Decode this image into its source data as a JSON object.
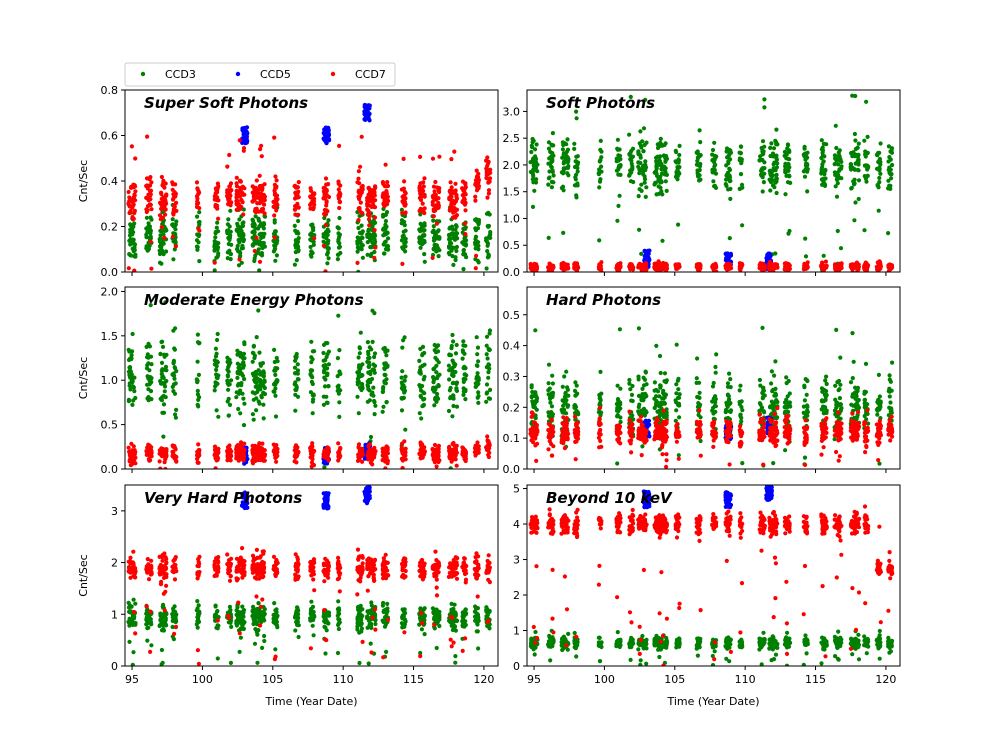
{
  "figure": {
    "xlabel": "Time (Year Date)",
    "ylabel": "Cnt/Sec"
  },
  "legend": {
    "location": "top-left",
    "entries": [
      {
        "name": "CCD3",
        "color": "#008000"
      },
      {
        "name": "CCD5",
        "color": "#0000ff"
      },
      {
        "name": "CCD7",
        "color": "#ff0000"
      }
    ]
  },
  "chart_data": [
    {
      "type": "scatter",
      "title": "Super Soft Photons",
      "xlim": [
        94.5,
        121
      ],
      "ylim": [
        0,
        0.8
      ],
      "xticks": [
        95,
        100,
        105,
        110,
        115,
        120
      ],
      "yticks": [
        0,
        0.2,
        0.4,
        0.6,
        0.8
      ],
      "ytick_labels": [
        "0.0",
        "0.2",
        "0.4",
        "0.6",
        "0.8"
      ],
      "series": [
        {
          "name": "CCD3",
          "color": "#008000",
          "level": 0.15,
          "spread": 0.05,
          "outlier_range": [
            0,
            0.3
          ]
        },
        {
          "name": "CCD5",
          "color": "#0000ff",
          "clusters": [
            [
              103.0,
              0.6
            ],
            [
              108.8,
              0.6
            ],
            [
              111.7,
              0.7
            ]
          ]
        },
        {
          "name": "CCD7",
          "color": "#ff0000",
          "level": 0.33,
          "spread": 0.04,
          "ramp_end": 0.45,
          "outlier_range": [
            0,
            0.6
          ]
        }
      ]
    },
    {
      "type": "scatter",
      "title": "Soft Photons",
      "xlim": [
        94.5,
        121
      ],
      "ylim": [
        0,
        3.4
      ],
      "xticks": [
        95,
        100,
        105,
        110,
        115,
        120
      ],
      "yticks": [
        0,
        0.5,
        1.0,
        1.5,
        2.0,
        2.5,
        3.0
      ],
      "ytick_labels": [
        "0.0",
        "0.5",
        "1.0",
        "1.5",
        "2.0",
        "2.5",
        "3.0"
      ],
      "series": [
        {
          "name": "CCD3",
          "color": "#008000",
          "level": 2.0,
          "spread": 0.25,
          "outlier_range": [
            0,
            3.3
          ]
        },
        {
          "name": "CCD5",
          "color": "#0000ff",
          "clusters": [
            [
              103.0,
              0.25
            ],
            [
              108.8,
              0.2
            ],
            [
              111.7,
              0.2
            ]
          ]
        },
        {
          "name": "CCD7",
          "color": "#ff0000",
          "level": 0.1,
          "spread": 0.03,
          "outlier_range": [
            0,
            0.2
          ]
        }
      ]
    },
    {
      "type": "scatter",
      "title": "Moderate Energy Photons",
      "xlim": [
        94.5,
        121
      ],
      "ylim": [
        0,
        2.05
      ],
      "xticks": [
        95,
        100,
        105,
        110,
        115,
        120
      ],
      "yticks": [
        0,
        0.5,
        1.0,
        1.5,
        2.0
      ],
      "ytick_labels": [
        "0.0",
        "0.5",
        "1.0",
        "1.5",
        "2.0"
      ],
      "series": [
        {
          "name": "CCD3",
          "color": "#008000",
          "level": 1.05,
          "spread": 0.2,
          "outlier_range": [
            0,
            2.0
          ]
        },
        {
          "name": "CCD5",
          "color": "#0000ff",
          "clusters": [
            [
              103.0,
              0.15
            ],
            [
              108.8,
              0.15
            ],
            [
              111.7,
              0.2
            ]
          ]
        },
        {
          "name": "CCD7",
          "color": "#ff0000",
          "level": 0.18,
          "spread": 0.05,
          "ramp_end": 0.28,
          "outlier_range": [
            0,
            0.3
          ]
        }
      ]
    },
    {
      "type": "scatter",
      "title": "Hard Photons",
      "xlim": [
        94.5,
        121
      ],
      "ylim": [
        0,
        0.59
      ],
      "xticks": [
        95,
        100,
        105,
        110,
        115,
        120
      ],
      "yticks": [
        0,
        0.1,
        0.2,
        0.3,
        0.4,
        0.5
      ],
      "ytick_labels": [
        "0.0",
        "0.1",
        "0.2",
        "0.3",
        "0.4",
        "0.5"
      ],
      "series": [
        {
          "name": "CCD3",
          "color": "#008000",
          "level": 0.2,
          "spread": 0.05,
          "outlier_range": [
            0,
            0.46
          ]
        },
        {
          "name": "CCD5",
          "color": "#0000ff",
          "clusters": [
            [
              103.0,
              0.13
            ],
            [
              108.8,
              0.12
            ],
            [
              111.7,
              0.14
            ]
          ]
        },
        {
          "name": "CCD7",
          "color": "#ff0000",
          "level": 0.12,
          "spread": 0.02,
          "outlier_range": [
            0,
            0.2
          ]
        }
      ]
    },
    {
      "type": "scatter",
      "title": "Very Hard Photons",
      "xlim": [
        94.5,
        121
      ],
      "ylim": [
        0,
        3.5
      ],
      "xticks": [
        95,
        100,
        105,
        110,
        115,
        120
      ],
      "yticks": [
        0,
        1,
        2,
        3
      ],
      "ytick_labels": [
        "0",
        "1",
        "2",
        "3"
      ],
      "series": [
        {
          "name": "CCD3",
          "color": "#008000",
          "level": 0.95,
          "spread": 0.12,
          "outlier_range": [
            0,
            1.3
          ]
        },
        {
          "name": "CCD5",
          "color": "#0000ff",
          "clusters": [
            [
              103.0,
              3.2
            ],
            [
              108.8,
              3.2
            ],
            [
              111.7,
              3.3
            ]
          ]
        },
        {
          "name": "CCD7",
          "color": "#ff0000",
          "level": 1.9,
          "spread": 0.12,
          "outlier_range": [
            0,
            2.3
          ]
        }
      ]
    },
    {
      "type": "scatter",
      "title": "Beyond 10 keV",
      "xlim": [
        94.5,
        121
      ],
      "ylim": [
        0,
        5.1
      ],
      "xticks": [
        95,
        100,
        105,
        110,
        115,
        120
      ],
      "yticks": [
        0,
        1,
        2,
        3,
        4,
        5
      ],
      "ytick_labels": [
        "0",
        "1",
        "2",
        "3",
        "4",
        "5"
      ],
      "series": [
        {
          "name": "CCD3",
          "color": "#008000",
          "level": 0.65,
          "spread": 0.08,
          "outlier_range": [
            0,
            1.0
          ]
        },
        {
          "name": "CCD5",
          "color": "#0000ff",
          "clusters": [
            [
              103.0,
              4.7
            ],
            [
              108.8,
              4.7
            ],
            [
              111.7,
              4.9
            ]
          ]
        },
        {
          "name": "CCD7",
          "color": "#ff0000",
          "level": 4.0,
          "spread": 0.15,
          "late_level": 2.75,
          "outlier_range": [
            0,
            4.5
          ]
        }
      ]
    }
  ]
}
